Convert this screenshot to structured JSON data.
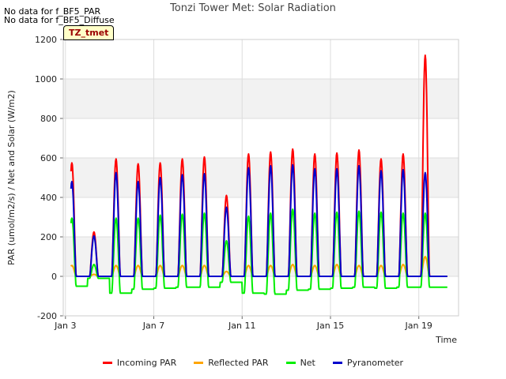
{
  "header": {
    "title": "Tonzi Tower Met: Solar Radiation",
    "nodata": [
      "No data for f_BF5_PAR",
      "No data for f_BF5_Diffuse"
    ],
    "site_tag": "TZ_tmet"
  },
  "chart_data": {
    "type": "line",
    "title": "Tonzi Tower Met: Solar Radiation",
    "xlabel": "Time",
    "ylabel": "PAR (umol/m2/s) / Net and Solar (W/m2)",
    "xlim": [
      2.9,
      20.8
    ],
    "ylim": [
      -200,
      1200
    ],
    "yticks": [
      -200,
      0,
      200,
      400,
      600,
      800,
      1000,
      1200
    ],
    "xticks": [
      {
        "v": 3,
        "label": "Jan 3"
      },
      {
        "v": 7,
        "label": "Jan 7"
      },
      {
        "v": 11,
        "label": "Jan 11"
      },
      {
        "v": 15,
        "label": "Jan 15"
      },
      {
        "v": 19,
        "label": "Jan 19"
      }
    ],
    "grid": true,
    "shaded_bands": true,
    "legend_position": "bottom",
    "days": [
      3,
      4,
      5,
      6,
      7,
      8,
      9,
      10,
      11,
      12,
      13,
      14,
      15,
      16,
      17,
      18,
      19,
      20
    ],
    "series": [
      {
        "name": "Incoming PAR",
        "color": "#ff0000",
        "night": 0,
        "peaks": [
          575,
          225,
          595,
          570,
          575,
          595,
          605,
          410,
          620,
          630,
          645,
          620,
          625,
          640,
          595,
          620,
          1120
        ]
      },
      {
        "name": "Reflected PAR",
        "color": "#ffa500",
        "night": 0,
        "peaks": [
          55,
          10,
          55,
          55,
          55,
          55,
          55,
          25,
          55,
          55,
          60,
          55,
          60,
          55,
          55,
          60,
          100
        ]
      },
      {
        "name": "Net",
        "color": "#00ee00",
        "night": -60,
        "night_values": [
          -50,
          -10,
          -85,
          -65,
          -60,
          -55,
          -55,
          -30,
          -85,
          -90,
          -70,
          -65,
          -60,
          -55,
          -60,
          -55,
          -55,
          -55
        ],
        "peaks": [
          295,
          60,
          295,
          295,
          310,
          315,
          320,
          180,
          305,
          320,
          340,
          320,
          325,
          330,
          325,
          320,
          320
        ]
      },
      {
        "name": "Pyranometer",
        "color": "#0000cc",
        "night": 0,
        "peaks": [
          480,
          205,
          525,
          480,
          500,
          515,
          520,
          350,
          550,
          560,
          565,
          545,
          545,
          560,
          535,
          540,
          525
        ]
      }
    ]
  }
}
